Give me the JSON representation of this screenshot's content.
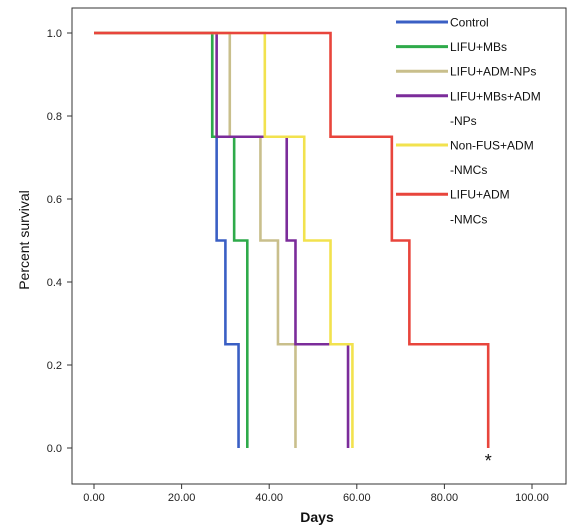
{
  "chart_data": {
    "type": "line",
    "step": true,
    "title": "",
    "xlabel": "Days",
    "ylabel": "Percent  survival",
    "xlim": [
      0,
      100
    ],
    "ylim": [
      0,
      1
    ],
    "xticks": [
      0,
      20,
      40,
      60,
      80,
      100
    ],
    "xtick_labels": [
      "0.00",
      "20.00",
      "40.00",
      "60.00",
      "80.00",
      "100.00"
    ],
    "yticks": [
      0,
      0.2,
      0.4,
      0.6,
      0.8,
      1.0
    ],
    "ytick_labels": [
      "0.0",
      "0.2",
      "0.4",
      "0.6",
      "0.8",
      "1.0"
    ],
    "grid": false,
    "legend_position": "top-right",
    "series": [
      {
        "name": "Control",
        "color": "#3a5fc4",
        "x": [
          0,
          27,
          28,
          30,
          33
        ],
        "y": [
          1.0,
          0.75,
          0.5,
          0.25,
          0.0
        ]
      },
      {
        "name": "LIFU+MBs",
        "color": "#2eaa4a",
        "x": [
          0,
          27,
          32,
          35
        ],
        "y": [
          1.0,
          0.75,
          0.5,
          0.0
        ]
      },
      {
        "name": "LIFU+ADM-NPs",
        "color": "#c9bf8c",
        "x": [
          0,
          31,
          38,
          42,
          46
        ],
        "y": [
          1.0,
          0.75,
          0.5,
          0.25,
          0.0
        ]
      },
      {
        "name": "LIFU+MBs+ADM",
        "name_line2": "-NPs",
        "color": "#7b2c9a",
        "x": [
          0,
          28,
          44,
          46,
          58
        ],
        "y": [
          1.0,
          0.75,
          0.5,
          0.25,
          0.0
        ]
      },
      {
        "name": "Non-FUS+ADM",
        "name_line2": "-NMCs",
        "color": "#f2e24e",
        "x": [
          0,
          39,
          48,
          54,
          59
        ],
        "y": [
          1.0,
          0.75,
          0.5,
          0.25,
          0.0
        ]
      },
      {
        "name": "LIFU+ADM",
        "name_line2": "-NMCs",
        "color": "#e8453c",
        "x": [
          0,
          54,
          68,
          72,
          90
        ],
        "y": [
          1.0,
          0.75,
          0.5,
          0.25,
          0.0
        ]
      }
    ],
    "annotations": [
      {
        "text": "*",
        "x": 90,
        "y": 0.0
      }
    ]
  }
}
